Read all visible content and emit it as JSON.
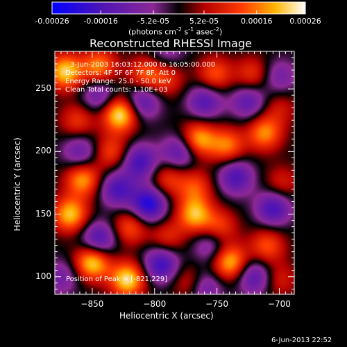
{
  "colorbar": {
    "tick_labels": [
      "-0.00026",
      "-0.00016",
      "-5.2e-05",
      "5.2e-05",
      "0.00016",
      "0.00026"
    ],
    "tick_values": [
      -0.00026,
      -0.00016,
      -5.2e-05,
      5.2e-05,
      0.00016,
      0.00026
    ],
    "range": [
      -0.00026,
      0.00026
    ],
    "unit_prefix": "(photons cm",
    "unit_exp1": "-2",
    "unit_mid1": " s",
    "unit_exp2": "-1",
    "unit_mid2": " asec",
    "unit_exp3": "-2",
    "unit_suffix": ")",
    "stops": [
      {
        "v": 0.0,
        "c": "#0000ff"
      },
      {
        "v": 0.2,
        "c": "#5014b4"
      },
      {
        "v": 0.4,
        "c": "#8c2896"
      },
      {
        "v": 0.5,
        "c": "#000000"
      },
      {
        "v": 0.6,
        "c": "#b40000"
      },
      {
        "v": 0.75,
        "c": "#ff3c00"
      },
      {
        "v": 0.88,
        "c": "#ffb400"
      },
      {
        "v": 1.0,
        "c": "#ffffff"
      }
    ]
  },
  "chart_data": {
    "type": "heatmap",
    "title": "Reconstructed RHESSI Image",
    "xlabel": "Heliocentric X (arcsec)",
    "ylabel": "Heliocentric Y (arcsec)",
    "xlim": [
      -880,
      -688
    ],
    "ylim": [
      86,
      280
    ],
    "x_ticks": [
      -850,
      -800,
      -750,
      -700
    ],
    "x_tick_labels": [
      "−850",
      "−800",
      "−750",
      "−700"
    ],
    "y_ticks": [
      100,
      150,
      200,
      250
    ],
    "y_tick_labels": [
      "100",
      "150",
      "200",
      "250"
    ],
    "value_range": [
      -0.00026,
      0.00026
    ],
    "blobs": [
      {
        "x": -828,
        "y": 230,
        "v": 1.0
      },
      {
        "x": -872,
        "y": 264,
        "v": 0.9
      },
      {
        "x": -845,
        "y": 268,
        "v": 0.7
      },
      {
        "x": -808,
        "y": 262,
        "v": 0.55
      },
      {
        "x": -790,
        "y": 258,
        "v": 0.4
      },
      {
        "x": -862,
        "y": 225,
        "v": 0.45
      },
      {
        "x": -835,
        "y": 200,
        "v": 0.5
      },
      {
        "x": -858,
        "y": 178,
        "v": 0.75
      },
      {
        "x": -868,
        "y": 150,
        "v": 0.85
      },
      {
        "x": -850,
        "y": 112,
        "v": 0.95
      },
      {
        "x": -822,
        "y": 98,
        "v": 0.95
      },
      {
        "x": -820,
        "y": 140,
        "v": 0.55
      },
      {
        "x": -790,
        "y": 132,
        "v": 0.4
      },
      {
        "x": -790,
        "y": 178,
        "v": 0.45
      },
      {
        "x": -765,
        "y": 210,
        "v": 0.8
      },
      {
        "x": -742,
        "y": 205,
        "v": 0.65
      },
      {
        "x": -712,
        "y": 215,
        "v": 0.7
      },
      {
        "x": -700,
        "y": 235,
        "v": 0.3
      },
      {
        "x": -752,
        "y": 262,
        "v": 0.55
      },
      {
        "x": -722,
        "y": 262,
        "v": 0.45
      },
      {
        "x": -768,
        "y": 172,
        "v": 0.5
      },
      {
        "x": -768,
        "y": 150,
        "v": 0.8
      },
      {
        "x": -748,
        "y": 140,
        "v": 0.5
      },
      {
        "x": -740,
        "y": 112,
        "v": 0.85
      },
      {
        "x": -710,
        "y": 125,
        "v": 0.55
      },
      {
        "x": -698,
        "y": 175,
        "v": 0.35
      },
      {
        "x": -772,
        "y": 96,
        "v": 0.4
      },
      {
        "x": -700,
        "y": 98,
        "v": 0.35
      },
      {
        "x": -810,
        "y": 240,
        "v": -0.6
      },
      {
        "x": -845,
        "y": 245,
        "v": -0.5
      },
      {
        "x": -830,
        "y": 170,
        "v": -0.65
      },
      {
        "x": -805,
        "y": 158,
        "v": -0.9
      },
      {
        "x": -812,
        "y": 192,
        "v": -0.7
      },
      {
        "x": -845,
        "y": 130,
        "v": -0.7
      },
      {
        "x": -795,
        "y": 110,
        "v": -0.75
      },
      {
        "x": -760,
        "y": 240,
        "v": -0.6
      },
      {
        "x": -725,
        "y": 240,
        "v": -0.55
      },
      {
        "x": -735,
        "y": 180,
        "v": -0.65
      },
      {
        "x": -705,
        "y": 155,
        "v": -0.7
      },
      {
        "x": -720,
        "y": 100,
        "v": -0.6
      },
      {
        "x": -860,
        "y": 200,
        "v": -0.5
      },
      {
        "x": -780,
        "y": 200,
        "v": -0.6
      },
      {
        "x": -755,
        "y": 125,
        "v": -0.45
      },
      {
        "x": -700,
        "y": 260,
        "v": -0.4
      },
      {
        "x": -760,
        "y": 92,
        "v": -0.5
      },
      {
        "x": -875,
        "y": 100,
        "v": -0.4
      },
      {
        "x": -790,
        "y": 280,
        "v": -0.3
      }
    ]
  },
  "annotations": {
    "time_range": "3-Jun-2003 16:03:12.000 to 16:05:00.000",
    "detectors": "Detectors: 4F 5F 6F 7F 8F, Att 0",
    "energy": "Energy Range: 25.0 - 50.0 keV",
    "clean": "Clean     Total counts: 1.10E+03",
    "position": "Position of Peak = [-821,229]"
  },
  "footer": {
    "timestamp": "6-Jun-2013 22:52"
  }
}
